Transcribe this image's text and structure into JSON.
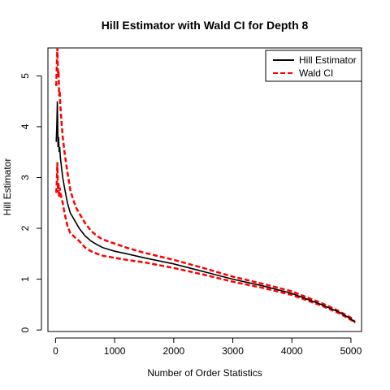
{
  "chart_data": {
    "type": "line",
    "title": "Hill Estimator with Wald CI for Depth 8",
    "xlabel": "Number of Order Statistics",
    "ylabel": "Hill Estimator",
    "xlim": [
      -130,
      5180
    ],
    "ylim": [
      -0.03,
      5.55
    ],
    "xticks": [
      0,
      1000,
      2000,
      3000,
      4000,
      5000
    ],
    "yticks": [
      0,
      1,
      2,
      3,
      4,
      5
    ],
    "grid": false,
    "legend_position": "top-right",
    "series": [
      {
        "name": "Hill Estimator",
        "color": "#000000",
        "dash": "solid",
        "x": [
          10,
          20,
          30,
          40,
          50,
          60,
          70,
          80,
          100,
          120,
          150,
          200,
          250,
          300,
          350,
          400,
          500,
          600,
          700,
          800,
          1000,
          1200,
          1500,
          2000,
          2500,
          3000,
          3500,
          4000,
          4500,
          4800,
          5000,
          5070
        ],
        "y": [
          3.7,
          4.0,
          4.5,
          3.6,
          3.8,
          3.5,
          3.6,
          3.4,
          3.2,
          3.0,
          2.8,
          2.5,
          2.3,
          2.2,
          2.1,
          2.0,
          1.85,
          1.75,
          1.68,
          1.62,
          1.55,
          1.5,
          1.42,
          1.3,
          1.15,
          1.0,
          0.87,
          0.72,
          0.5,
          0.35,
          0.22,
          0.15
        ]
      },
      {
        "name": "Wald CI",
        "color": "#ff0000",
        "dash": "dashed",
        "upper_x": [
          10,
          20,
          30,
          40,
          50,
          60,
          70,
          80,
          100,
          120,
          150,
          200,
          250,
          300,
          350,
          400,
          500,
          600,
          700,
          800,
          1000,
          1200,
          1500,
          2000,
          2500,
          3000,
          3500,
          4000,
          4500,
          4800,
          5000,
          5070
        ],
        "upper_y": [
          4.8,
          5.2,
          5.55,
          5.0,
          5.1,
          4.6,
          4.7,
          4.4,
          4.1,
          3.8,
          3.5,
          3.1,
          2.75,
          2.55,
          2.4,
          2.3,
          2.1,
          1.95,
          1.85,
          1.78,
          1.7,
          1.62,
          1.52,
          1.38,
          1.22,
          1.05,
          0.91,
          0.76,
          0.53,
          0.37,
          0.24,
          0.16
        ],
        "lower_x": [
          10,
          20,
          30,
          40,
          50,
          60,
          70,
          80,
          100,
          120,
          150,
          200,
          250,
          300,
          350,
          400,
          500,
          600,
          700,
          800,
          1000,
          1200,
          1500,
          2000,
          2500,
          3000,
          3500,
          4000,
          4500,
          4800,
          5000,
          5070
        ],
        "lower_y": [
          2.7,
          2.9,
          3.3,
          2.7,
          2.9,
          2.6,
          2.8,
          2.7,
          2.6,
          2.5,
          2.3,
          2.05,
          1.9,
          1.85,
          1.8,
          1.75,
          1.62,
          1.55,
          1.5,
          1.46,
          1.42,
          1.38,
          1.33,
          1.22,
          1.09,
          0.95,
          0.83,
          0.69,
          0.48,
          0.33,
          0.2,
          0.14
        ]
      }
    ]
  }
}
